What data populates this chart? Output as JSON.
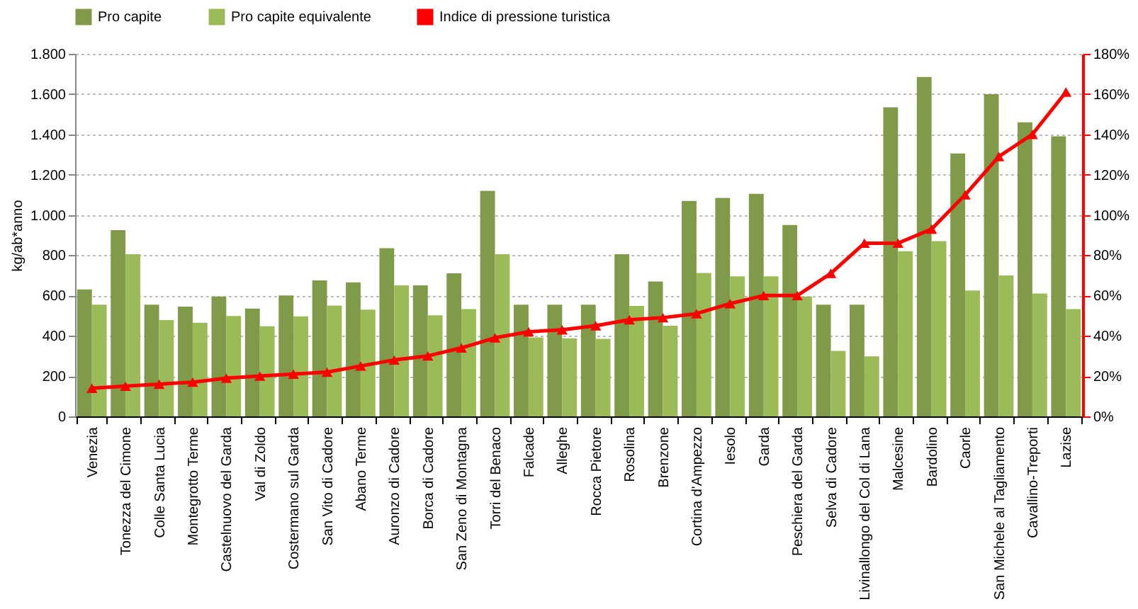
{
  "chart_data": {
    "type": "bar",
    "ylabel": "kg/ab*anno",
    "categories": [
      "Venezia",
      "Tonezza del Cimone",
      "Colle Santa Lucia",
      "Montegrotto Terme",
      "Castelnuovo del Garda",
      "Val di Zoldo",
      "Costermano sul Garda",
      "San Vito di Cadore",
      "Abano Terme",
      "Auronzo di Cadore",
      "Borca di Cadore",
      "San Zeno di Montagna",
      "Torri del Benaco",
      "Falcade",
      "Alleghe",
      "Rocca Pietore",
      "Rosolina",
      "Brenzone",
      "Cortina d'Ampezzo",
      "Iesolo",
      "Garda",
      "Peschiera del Garda",
      "Selva di Cadore",
      "Livinallongo del Col di Lana",
      "Malcesine",
      "Bardolino",
      "Caorle",
      "San Michele al Tagliamento",
      "Cavallino-Treporti",
      "Lazise"
    ],
    "series": [
      {
        "name": "Pro capite",
        "color": "#7f9a48",
        "values": [
          630,
          925,
          555,
          545,
          595,
          535,
          600,
          675,
          665,
          835,
          650,
          710,
          1120,
          555,
          555,
          555,
          805,
          670,
          1070,
          1085,
          1105,
          950,
          555,
          555,
          1535,
          1685,
          1305,
          1600,
          1460,
          1390
        ]
      },
      {
        "name": "Pro capite equivalente",
        "color": "#9bbb59",
        "values": [
          555,
          805,
          478,
          465,
          498,
          447,
          497,
          550,
          530,
          650,
          502,
          533,
          805,
          392,
          388,
          385,
          548,
          450,
          712,
          695,
          695,
          595,
          325,
          298,
          820,
          870,
          625,
          700,
          610,
          533
        ]
      },
      {
        "name": "Indice di pressione turistica",
        "type": "line",
        "axis": "y2",
        "color": "#ff0000",
        "values": [
          14,
          15,
          16,
          17,
          19,
          20,
          21,
          22,
          25,
          28,
          30,
          34,
          39,
          42,
          43,
          45,
          48,
          49,
          51,
          56,
          60,
          60,
          71,
          86,
          86,
          93,
          110,
          129,
          140,
          161
        ]
      }
    ],
    "ylim": [
      0,
      1800
    ],
    "yticks": [
      {
        "value": 0,
        "label": "0"
      },
      {
        "value": 200,
        "label": "200"
      },
      {
        "value": 400,
        "label": "400"
      },
      {
        "value": 600,
        "label": "600"
      },
      {
        "value": 800,
        "label": "800"
      },
      {
        "value": 1000,
        "label": "1.000"
      },
      {
        "value": 1200,
        "label": "1.200"
      },
      {
        "value": 1400,
        "label": "1.400"
      },
      {
        "value": 1600,
        "label": "1.600"
      },
      {
        "value": 1800,
        "label": "1.800"
      }
    ],
    "y2lim": [
      0,
      180
    ],
    "y2ticks": [
      {
        "value": 0,
        "label": "0%"
      },
      {
        "value": 20,
        "label": "20%"
      },
      {
        "value": 40,
        "label": "40%"
      },
      {
        "value": 60,
        "label": "60%"
      },
      {
        "value": 80,
        "label": "80%"
      },
      {
        "value": 100,
        "label": "100%"
      },
      {
        "value": 120,
        "label": "120%"
      },
      {
        "value": 140,
        "label": "140%"
      },
      {
        "value": 160,
        "label": "160%"
      },
      {
        "value": 180,
        "label": "180%"
      }
    ],
    "grid": "y",
    "legend": "top",
    "marker": "triangle",
    "line_style": "solid"
  }
}
